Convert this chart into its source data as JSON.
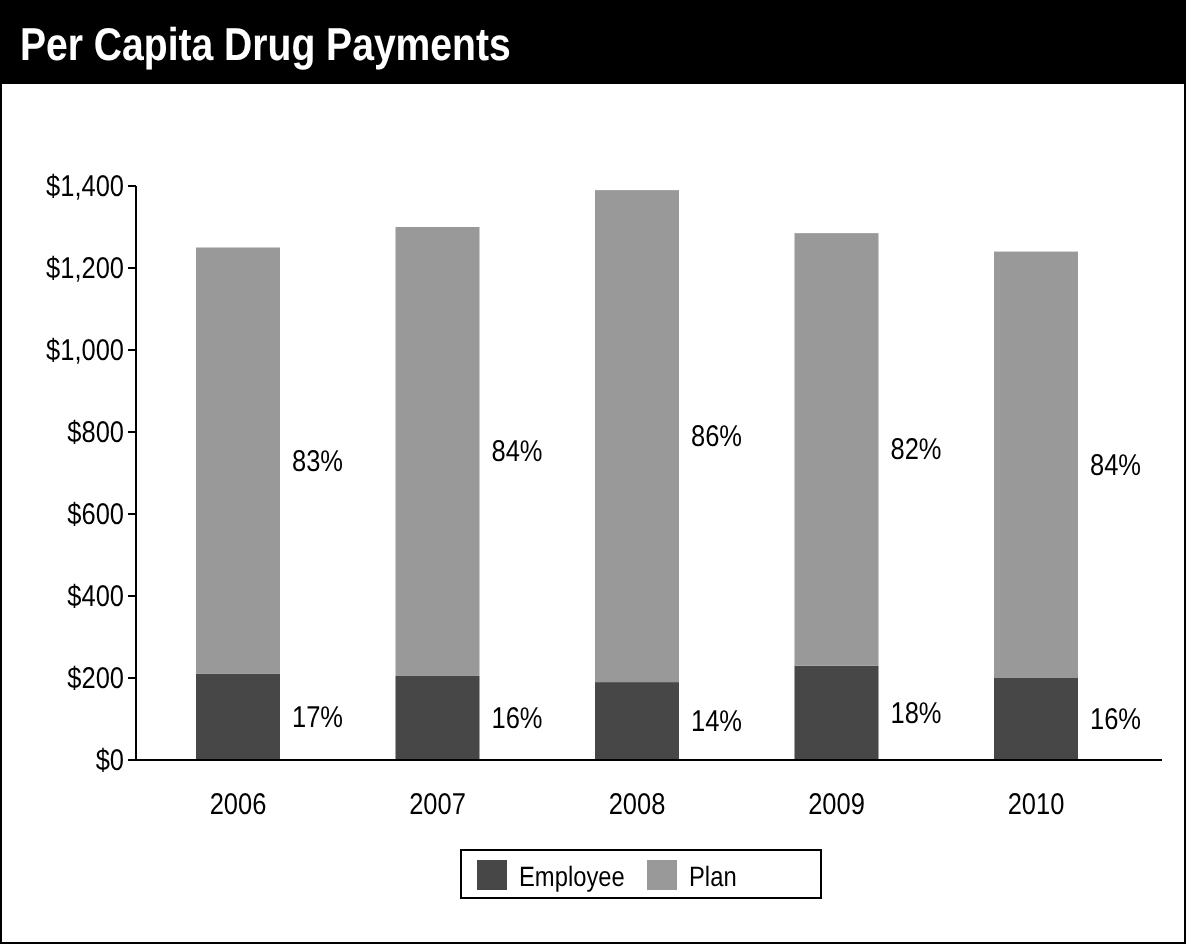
{
  "chart_data": {
    "type": "bar",
    "title": "Per Capita Drug Payments",
    "categories": [
      "2006",
      "2007",
      "2008",
      "2009",
      "2010"
    ],
    "stacked": true,
    "series": [
      {
        "name": "Employee",
        "color": "#474747",
        "values": [
          210,
          205,
          190,
          230,
          200
        ]
      },
      {
        "name": "Plan",
        "color": "#999999",
        "values": [
          1040,
          1095,
          1200,
          1055,
          1040
        ]
      }
    ],
    "annotations": [
      "17%",
      "16%",
      "14%",
      "18%",
      "16%",
      "83%",
      "84%",
      "86%",
      "82%",
      "84%"
    ],
    "ylim": [
      0,
      1400
    ],
    "yticks": [
      {
        "value": 0,
        "label": "$0"
      },
      {
        "value": 200,
        "label": "$200"
      },
      {
        "value": 400,
        "label": "$400"
      },
      {
        "value": 600,
        "label": "$600"
      },
      {
        "value": 800,
        "label": "$800"
      },
      {
        "value": 1000,
        "label": "$1,000"
      },
      {
        "value": 1200,
        "label": "$1,200"
      },
      {
        "value": 1400,
        "label": "$1,400"
      }
    ],
    "grid": false,
    "legend": "bottom"
  }
}
